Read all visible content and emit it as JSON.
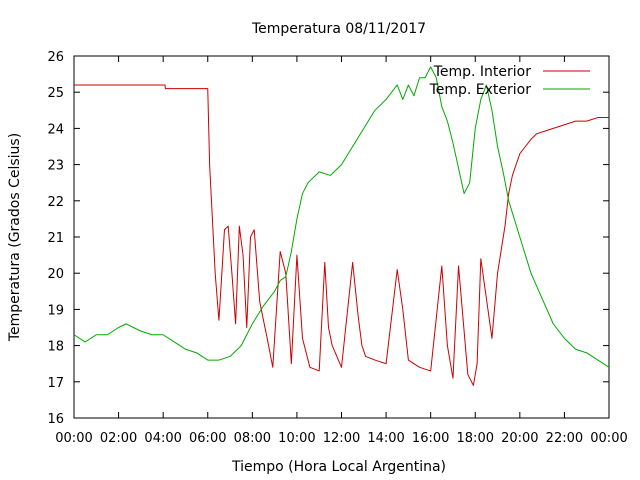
{
  "chart_data": {
    "type": "line",
    "title": "Temperatura 08/11/2017",
    "xlabel": "Tiempo (Hora Local Argentina)",
    "ylabel": "Temperatura (Grados Celsius)",
    "xlim": [
      "00:00",
      "24:00"
    ],
    "ylim": [
      16,
      26
    ],
    "x_tick_labels": [
      "00:00",
      "02:00",
      "04:00",
      "06:00",
      "08:00",
      "10:00",
      "12:00",
      "14:00",
      "16:00",
      "18:00",
      "20:00",
      "22:00",
      "00:00"
    ],
    "y_tick_labels": [
      "16",
      "17",
      "18",
      "19",
      "20",
      "21",
      "22",
      "23",
      "24",
      "25",
      "26"
    ],
    "legend_position": "top-right",
    "grid": false,
    "series": [
      {
        "name": "Temp. Interior",
        "color": "#cc0000",
        "x": [
          "00:00",
          "04:05",
          "04:06",
          "06:00",
          "06:05",
          "06:20",
          "06:30",
          "06:35",
          "06:45",
          "06:55",
          "07:05",
          "07:15",
          "07:25",
          "07:35",
          "07:45",
          "07:55",
          "08:05",
          "08:20",
          "08:40",
          "08:55",
          "09:05",
          "09:15",
          "09:30",
          "09:45",
          "10:00",
          "10:15",
          "10:35",
          "11:00",
          "11:15",
          "11:25",
          "11:35",
          "12:00",
          "12:30",
          "12:45",
          "12:55",
          "13:05",
          "13:30",
          "14:00",
          "14:30",
          "14:45",
          "15:00",
          "15:15",
          "15:30",
          "16:00",
          "16:30",
          "16:45",
          "17:00",
          "17:15",
          "17:40",
          "17:55",
          "18:05",
          "18:15",
          "18:45",
          "19:00",
          "19:20",
          "19:30",
          "19:40",
          "19:50",
          "20:00",
          "20:15",
          "20:30",
          "20:45",
          "21:00",
          "21:30",
          "22:00",
          "22:30",
          "23:00",
          "23:30",
          "24:00"
        ],
        "values": [
          25.2,
          25.2,
          25.1,
          25.1,
          23.0,
          20.0,
          18.7,
          19.5,
          21.2,
          21.3,
          20.0,
          18.6,
          21.3,
          20.5,
          18.5,
          21.0,
          21.2,
          19.2,
          18.2,
          17.4,
          19.0,
          20.6,
          20.0,
          17.5,
          20.5,
          18.2,
          17.4,
          17.3,
          20.3,
          18.5,
          18.0,
          17.4,
          20.3,
          18.8,
          18.0,
          17.7,
          17.6,
          17.5,
          20.1,
          19.0,
          17.6,
          17.5,
          17.4,
          17.3,
          20.2,
          18.0,
          17.1,
          20.2,
          17.2,
          16.9,
          17.5,
          20.4,
          18.2,
          20.0,
          21.3,
          22.2,
          22.7,
          23.0,
          23.3,
          23.5,
          23.7,
          23.85,
          23.9,
          24.0,
          24.1,
          24.2,
          24.2,
          24.3,
          24.3
        ]
      },
      {
        "name": "Temp. Exterior",
        "color": "#00aa00",
        "x": [
          "00:00",
          "00:30",
          "01:00",
          "01:30",
          "02:00",
          "02:20",
          "02:40",
          "03:00",
          "03:30",
          "04:00",
          "04:30",
          "05:00",
          "05:30",
          "06:00",
          "06:30",
          "07:00",
          "07:30",
          "08:00",
          "08:30",
          "09:00",
          "09:15",
          "09:30",
          "09:45",
          "10:00",
          "10:15",
          "10:30",
          "11:00",
          "11:30",
          "12:00",
          "12:30",
          "13:00",
          "13:30",
          "14:00",
          "14:30",
          "14:45",
          "15:00",
          "15:15",
          "15:30",
          "15:45",
          "16:00",
          "16:15",
          "16:30",
          "16:45",
          "17:00",
          "17:30",
          "17:45",
          "18:00",
          "18:15",
          "18:30",
          "18:45",
          "19:00",
          "19:15",
          "19:30",
          "20:00",
          "20:30",
          "21:00",
          "21:30",
          "22:00",
          "22:30",
          "23:00",
          "23:30",
          "24:00"
        ],
        "values": [
          18.3,
          18.1,
          18.3,
          18.3,
          18.5,
          18.6,
          18.5,
          18.4,
          18.3,
          18.3,
          18.1,
          17.9,
          17.8,
          17.6,
          17.6,
          17.7,
          18.0,
          18.6,
          19.1,
          19.5,
          19.8,
          19.9,
          20.6,
          21.5,
          22.2,
          22.5,
          22.8,
          22.7,
          23.0,
          23.5,
          24.0,
          24.5,
          24.8,
          25.2,
          24.8,
          25.2,
          24.9,
          25.4,
          25.4,
          25.7,
          25.4,
          24.6,
          24.2,
          23.6,
          22.2,
          22.5,
          24.0,
          24.8,
          25.2,
          24.5,
          23.5,
          22.8,
          22.0,
          21.0,
          20.0,
          19.3,
          18.6,
          18.2,
          17.9,
          17.8,
          17.6,
          17.4
        ]
      }
    ]
  }
}
